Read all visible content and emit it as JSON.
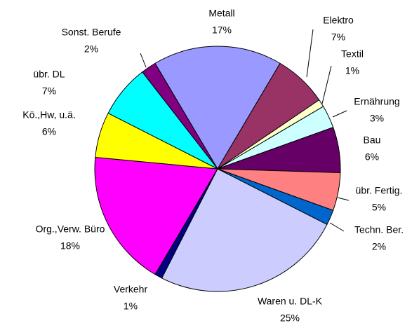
{
  "chart_data": {
    "type": "pie",
    "categories": [
      "Metall",
      "Elektro",
      "Textil",
      "Ernährung",
      "Bau",
      "übr. Fertig.",
      "Techn. Ber.",
      "Waren u. DL-K",
      "Verkehr",
      "Org.,Verw. Büro",
      "Kö.,Hw, u.ä.",
      "übr. DL",
      "Sonst. Berufe"
    ],
    "values": [
      17,
      7,
      1,
      3,
      6,
      5,
      2,
      25,
      1,
      18,
      6,
      7,
      2
    ],
    "value_labels": [
      "17%",
      "7%",
      "1%",
      "3%",
      "6%",
      "5%",
      "2%",
      "25%",
      "1%",
      "18%",
      "6%",
      "7%",
      "2%"
    ],
    "colors": [
      "#9999ff",
      "#993366",
      "#ffffcc",
      "#ccffff",
      "#660066",
      "#ff8080",
      "#0066cc",
      "#ccccff",
      "#000080",
      "#ff00ff",
      "#ffff00",
      "#00ffff",
      "#800080"
    ]
  }
}
